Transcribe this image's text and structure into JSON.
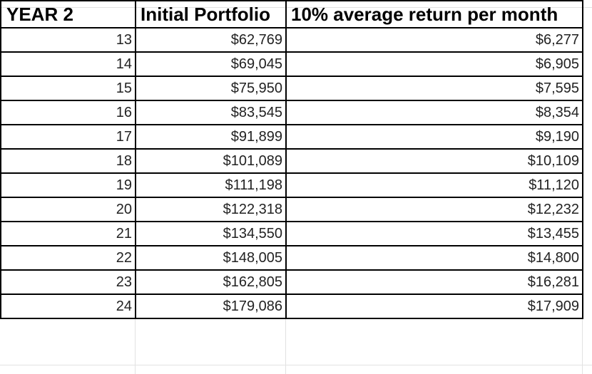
{
  "sheet": {
    "headers": {
      "month": "YEAR 2",
      "portfolio": "Initial Portfolio",
      "return": "10% average return per month"
    },
    "rows": [
      {
        "month": "13",
        "portfolio": "$62,769",
        "return": "$6,277"
      },
      {
        "month": "14",
        "portfolio": "$69,045",
        "return": "$6,905"
      },
      {
        "month": "15",
        "portfolio": "$75,950",
        "return": "$7,595"
      },
      {
        "month": "16",
        "portfolio": "$83,545",
        "return": "$8,354"
      },
      {
        "month": "17",
        "portfolio": "$91,899",
        "return": "$9,190"
      },
      {
        "month": "18",
        "portfolio": "$101,089",
        "return": "$10,109"
      },
      {
        "month": "19",
        "portfolio": "$111,198",
        "return": "$11,120"
      },
      {
        "month": "20",
        "portfolio": "$122,318",
        "return": "$12,232"
      },
      {
        "month": "21",
        "portfolio": "$134,550",
        "return": "$13,455"
      },
      {
        "month": "22",
        "portfolio": "$148,005",
        "return": "$14,800"
      },
      {
        "month": "23",
        "portfolio": "$162,805",
        "return": "$16,281"
      },
      {
        "month": "24",
        "portfolio": "$179,086",
        "return": "$17,909"
      }
    ]
  }
}
